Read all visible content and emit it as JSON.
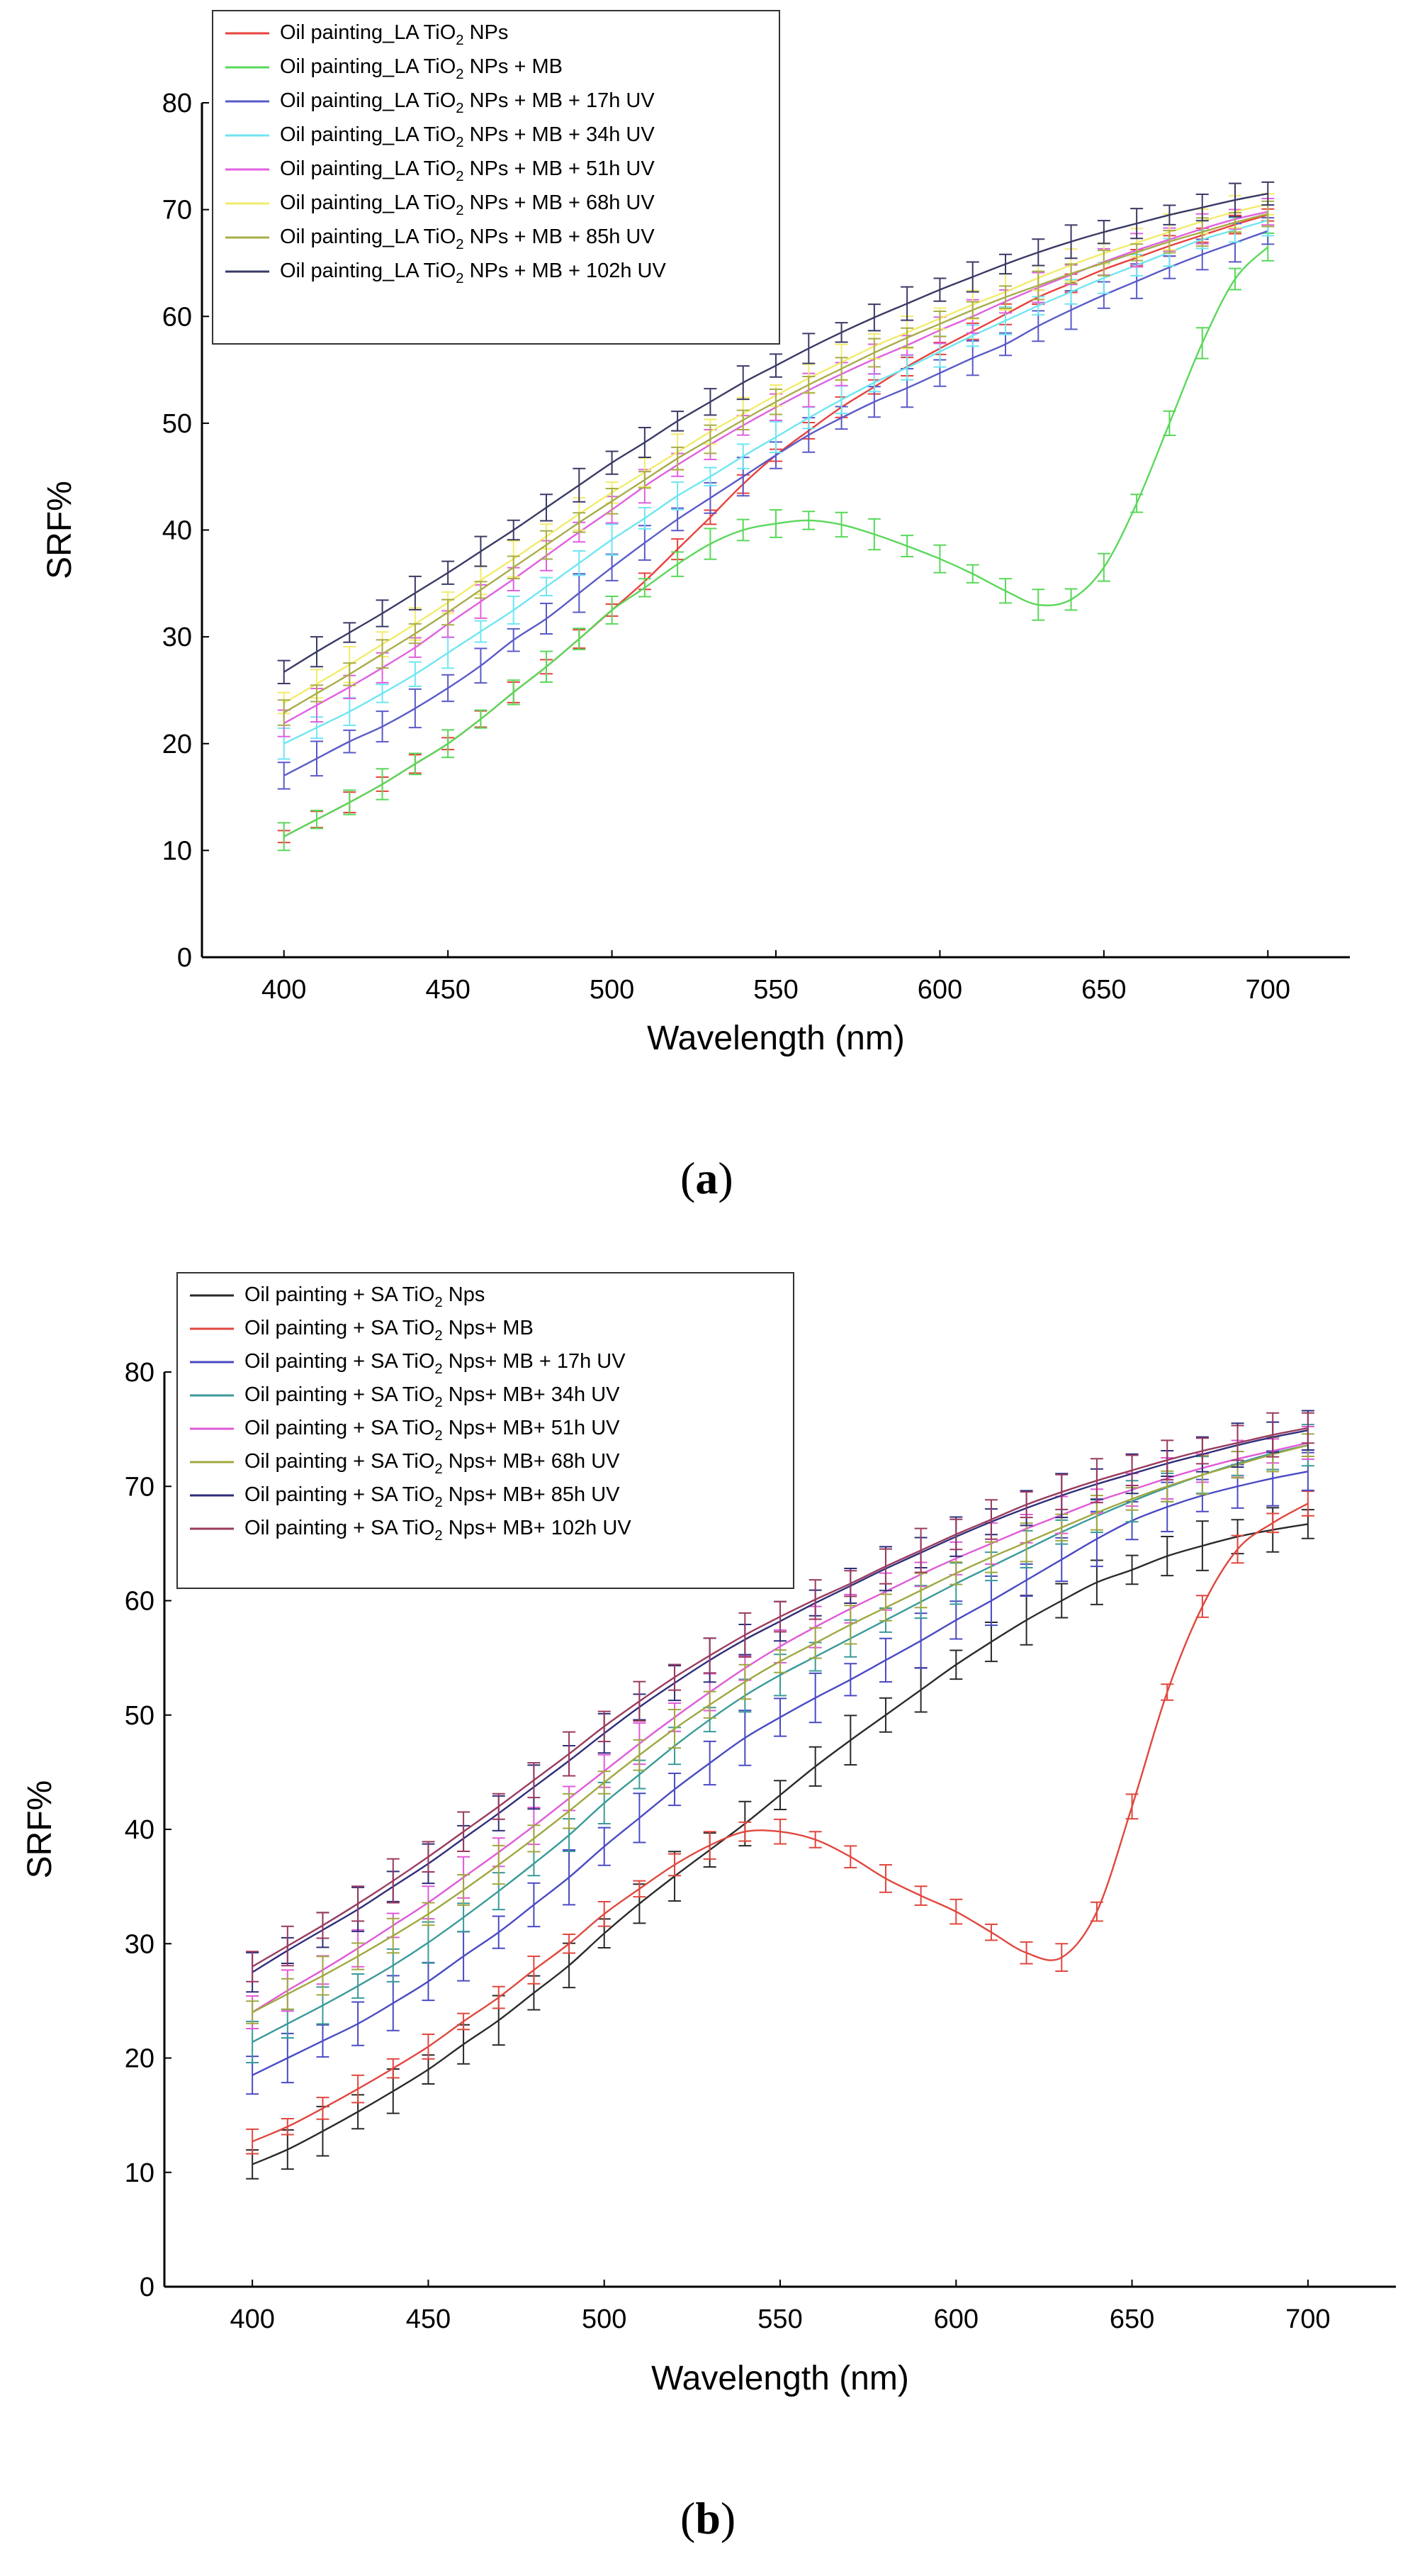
{
  "figure": {
    "panel_a_label": "a",
    "panel_b_label": "b"
  },
  "chart_data": [
    {
      "panel": "a",
      "type": "line",
      "title": "",
      "xlabel": "Wavelength (nm)",
      "ylabel": "SRF%",
      "xlim": [
        375,
        725
      ],
      "ylim": [
        0,
        80
      ],
      "xticks": [
        400,
        450,
        500,
        550,
        600,
        650,
        700
      ],
      "yticks": [
        0,
        10,
        20,
        30,
        40,
        50,
        60,
        70,
        80
      ],
      "grid": false,
      "error_bars": true,
      "legend_position": "top-left",
      "x": [
        400,
        410,
        420,
        430,
        440,
        450,
        460,
        470,
        480,
        490,
        500,
        510,
        520,
        530,
        540,
        550,
        560,
        570,
        580,
        590,
        600,
        610,
        620,
        630,
        640,
        650,
        660,
        670,
        680,
        690,
        700
      ],
      "series": [
        {
          "name": "Oil painting_LA TiO2 NPs",
          "legend_base": "Oil painting_LA TiO",
          "legend_sub": "2",
          "legend_tail": " NPs",
          "color": "#e8413c",
          "error": 0.8,
          "values": [
            11.3,
            12.9,
            14.5,
            16.2,
            18.1,
            20.0,
            22.3,
            24.8,
            27.2,
            29.8,
            32.5,
            35.2,
            38.2,
            41.2,
            44.3,
            47.0,
            49.3,
            51.5,
            53.4,
            55.3,
            57.0,
            58.6,
            60.2,
            61.8,
            63.1,
            64.4,
            65.5,
            66.6,
            67.6,
            68.6,
            69.5
          ]
        },
        {
          "name": "Oil painting_LA TiO2 NPs + MB",
          "legend_base": "Oil painting_LA TiO",
          "legend_sub": "2",
          "legend_tail": " NPs + MB",
          "color": "#5ad85a",
          "error": 1.2,
          "values": [
            11.3,
            12.9,
            14.5,
            16.2,
            18.1,
            20.0,
            22.3,
            24.8,
            27.2,
            29.8,
            32.5,
            34.6,
            36.8,
            38.7,
            40.0,
            40.6,
            40.9,
            40.5,
            39.6,
            38.5,
            37.3,
            35.9,
            34.3,
            33.0,
            33.5,
            36.5,
            42.5,
            50.0,
            57.5,
            63.5,
            66.5
          ]
        },
        {
          "name": "Oil painting_LA TiO2 NPs + MB + 17h UV",
          "legend_base": "Oil painting_LA TiO",
          "legend_sub": "2",
          "legend_tail": " NPs + MB + 17h UV",
          "color": "#5a5ac8",
          "error": 1.5,
          "values": [
            17.0,
            18.6,
            20.2,
            21.6,
            23.3,
            25.2,
            27.3,
            29.7,
            31.7,
            34.1,
            36.5,
            38.8,
            41.0,
            43.0,
            45.0,
            47.0,
            48.9,
            50.5,
            52.0,
            53.3,
            54.7,
            56.1,
            57.4,
            59.1,
            60.6,
            62.0,
            63.3,
            64.6,
            65.8,
            66.9,
            68.0
          ]
        },
        {
          "name": "Oil painting_LA TiO2 NPs + MB + 34h UV",
          "legend_base": "Oil painting_LA TiO",
          "legend_sub": "2",
          "legend_tail": " NPs + MB + 34h UV",
          "color": "#6fe6f2",
          "error": 1.2,
          "values": [
            20.0,
            21.5,
            23.0,
            24.7,
            26.5,
            28.5,
            30.5,
            32.5,
            34.7,
            36.9,
            39.1,
            41.1,
            43.2,
            45.0,
            46.9,
            48.7,
            50.5,
            52.2,
            53.8,
            55.2,
            56.7,
            58.2,
            59.6,
            61.0,
            62.3,
            63.6,
            64.8,
            66.0,
            67.2,
            68.1,
            69.0
          ]
        },
        {
          "name": "Oil painting_LA TiO2 NPs + MB + 51h UV",
          "legend_base": "Oil painting_LA TiO",
          "legend_sub": "2",
          "legend_tail": " NPs + MB + 51h UV",
          "color": "#e060e0",
          "error": 1.3,
          "values": [
            21.9,
            23.6,
            25.3,
            27.1,
            29.0,
            31.2,
            33.3,
            35.4,
            37.6,
            39.8,
            41.9,
            44.1,
            46.1,
            48.0,
            49.8,
            51.5,
            53.1,
            54.6,
            56.0,
            57.3,
            58.7,
            60.0,
            61.4,
            62.7,
            63.9,
            65.1,
            66.2,
            67.2,
            68.2,
            69.1,
            69.8
          ]
        },
        {
          "name": "Oil painting_LA TiO2 NPs + MB + 68h UV",
          "legend_base": "Oil painting_LA TiO",
          "legend_sub": "2",
          "legend_tail": " NPs + MB + 68h UV",
          "color": "#f2ec6a",
          "error": 1.4,
          "values": [
            23.8,
            25.6,
            27.4,
            29.3,
            31.2,
            33.2,
            35.3,
            37.3,
            39.4,
            41.5,
            43.5,
            45.4,
            47.3,
            49.2,
            50.9,
            52.6,
            54.2,
            55.7,
            57.2,
            58.5,
            59.8,
            61.1,
            62.3,
            63.6,
            64.8,
            65.9,
            66.9,
            67.9,
            68.9,
            69.8,
            70.5
          ]
        },
        {
          "name": "Oil painting_LA TiO2 NPs + MB + 85h UV",
          "legend_base": "Oil painting_LA TiO",
          "legend_sub": "2",
          "legend_tail": " NPs + MB + 85h UV",
          "color": "#a8ad48",
          "error": 1.1,
          "values": [
            22.9,
            24.7,
            26.5,
            28.4,
            30.3,
            32.3,
            34.4,
            36.5,
            38.6,
            40.7,
            42.7,
            44.7,
            46.7,
            48.5,
            50.3,
            52.0,
            53.6,
            55.1,
            56.6,
            58.0,
            59.3,
            60.6,
            61.8,
            62.9,
            64.0,
            65.0,
            66.0,
            67.0,
            67.9,
            68.8,
            69.6
          ]
        },
        {
          "name": "Oil painting_LA TiO2 NPs + MB + 102h UV",
          "legend_base": "Oil painting_LA TiO",
          "legend_sub": "2",
          "legend_tail": " NPs + MB + 102h UV",
          "color": "#3a3a66",
          "error": 1.3,
          "values": [
            26.7,
            28.6,
            30.4,
            32.2,
            34.1,
            36.0,
            38.0,
            40.0,
            42.1,
            44.2,
            46.3,
            48.2,
            50.2,
            52.0,
            53.8,
            55.4,
            57.0,
            58.5,
            59.9,
            61.2,
            62.5,
            63.7,
            64.9,
            66.0,
            67.0,
            67.9,
            68.7,
            69.5,
            70.2,
            70.9,
            71.5
          ]
        }
      ]
    },
    {
      "panel": "b",
      "type": "line",
      "title": "",
      "xlabel": "Wavelength (nm)",
      "ylabel": "SRF%",
      "xlim": [
        375,
        725
      ],
      "ylim": [
        0,
        80
      ],
      "xticks": [
        400,
        450,
        500,
        550,
        600,
        650,
        700
      ],
      "yticks": [
        0,
        10,
        20,
        30,
        40,
        50,
        60,
        70,
        80
      ],
      "grid": false,
      "error_bars": true,
      "legend_position": "top-left",
      "x": [
        400,
        410,
        420,
        430,
        440,
        450,
        460,
        470,
        480,
        490,
        500,
        510,
        520,
        530,
        540,
        550,
        560,
        570,
        580,
        590,
        600,
        610,
        620,
        630,
        640,
        650,
        660,
        670,
        680,
        690,
        700
      ],
      "series": [
        {
          "name": "Oil painting + SA TiO2 Nps",
          "legend_base": "Oil painting + SA TiO",
          "legend_sub": "2",
          "legend_tail": " Nps",
          "color": "#2a2a2a",
          "error": 1.8,
          "values": [
            10.7,
            12.0,
            13.6,
            15.3,
            17.1,
            19.0,
            21.2,
            23.3,
            25.7,
            28.1,
            30.9,
            33.5,
            35.9,
            38.2,
            40.5,
            43.0,
            45.5,
            47.8,
            50.0,
            52.2,
            54.4,
            56.4,
            58.3,
            60.0,
            61.6,
            62.7,
            63.9,
            64.8,
            65.6,
            66.2,
            66.7
          ]
        },
        {
          "name": "Oil  painting + SA TiO2 Nps+ MB",
          "legend_base": "Oil  painting + SA TiO",
          "legend_sub": "2",
          "legend_tail": " Nps+ MB",
          "color": "#e0473e",
          "error": 1.0,
          "values": [
            12.7,
            14.0,
            15.6,
            17.3,
            19.1,
            21.0,
            23.2,
            25.3,
            27.7,
            30.0,
            32.6,
            34.8,
            36.9,
            38.6,
            39.8,
            39.8,
            39.1,
            37.6,
            35.7,
            34.2,
            32.8,
            31.0,
            29.2,
            28.8,
            32.8,
            42.0,
            52.0,
            59.5,
            64.5,
            66.8,
            68.5
          ]
        },
        {
          "name": "Oil  painting + SA TiO2 Nps+ MB + 17h UV",
          "legend_base": "Oil  painting + SA TiO",
          "legend_sub": "2",
          "legend_tail": " Nps+ MB + 17h UV",
          "color": "#4a4ac4",
          "error": 2.0,
          "values": [
            18.5,
            20.0,
            21.5,
            23.0,
            24.8,
            26.7,
            28.9,
            31.0,
            33.4,
            35.8,
            38.5,
            41.0,
            43.5,
            45.8,
            48.0,
            49.8,
            51.5,
            53.1,
            54.8,
            56.5,
            58.3,
            60.0,
            61.8,
            63.6,
            65.4,
            67.0,
            68.2,
            69.2,
            70.0,
            70.7,
            71.3
          ]
        },
        {
          "name": "Oil  painting + SA TiO2 Nps+ MB+ 34h UV",
          "legend_base": "Oil  painting + SA TiO",
          "legend_sub": "2",
          "legend_tail": " Nps+ MB+ 34h UV",
          "color": "#3a9a9a",
          "error": 1.5,
          "values": [
            21.4,
            23.0,
            24.6,
            26.3,
            28.1,
            30.1,
            32.3,
            34.6,
            37.0,
            39.5,
            42.3,
            44.8,
            47.3,
            49.6,
            51.7,
            53.5,
            55.1,
            56.7,
            58.3,
            59.9,
            61.5,
            63.0,
            64.5,
            66.0,
            67.4,
            68.7,
            69.9,
            71.0,
            72.0,
            72.9,
            73.6
          ]
        },
        {
          "name": "Oil  painting + SA TiO2 Nps+ MB+ 51h UV",
          "legend_base": "Oil  painting + SA TiO",
          "legend_sub": "2",
          "legend_tail": " Nps+ MB+ 51h UV",
          "color": "#e05ad8",
          "error": 1.5,
          "values": [
            24.0,
            25.9,
            27.7,
            29.6,
            31.6,
            33.6,
            35.8,
            38.0,
            40.3,
            42.7,
            45.1,
            47.5,
            49.8,
            52.0,
            54.1,
            56.0,
            57.7,
            59.3,
            60.8,
            62.3,
            63.7,
            65.0,
            66.3,
            67.5,
            68.7,
            69.7,
            70.7,
            71.6,
            72.4,
            73.1,
            73.8
          ]
        },
        {
          "name": "Oil  painting + SA TiO2 Nps+ MB+ 68h UV",
          "legend_base": "Oil  painting + SA TiO",
          "legend_sub": "2",
          "legend_tail": " Nps+ MB+ 68h UV",
          "color": "#a0a840",
          "error": 1.4,
          "values": [
            24.0,
            25.6,
            27.2,
            28.9,
            30.7,
            32.6,
            34.7,
            36.9,
            39.2,
            41.6,
            44.1,
            46.5,
            48.8,
            50.9,
            52.9,
            54.7,
            56.3,
            57.9,
            59.4,
            60.9,
            62.4,
            63.8,
            65.1,
            66.4,
            67.7,
            68.9,
            70.0,
            71.0,
            71.9,
            72.8,
            73.6
          ]
        },
        {
          "name": "Oil  painting + SA TiO2 Nps+ MB+ 85h UV",
          "legend_base": "Oil  painting + SA TiO",
          "legend_sub": "2",
          "legend_tail": " Nps+ MB+ 85h UV",
          "color": "#2e2e7a",
          "error": 1.6,
          "values": [
            27.5,
            29.4,
            31.2,
            33.0,
            35.0,
            37.0,
            39.2,
            41.4,
            43.7,
            46.0,
            48.4,
            50.7,
            52.8,
            54.8,
            56.6,
            58.2,
            59.8,
            61.3,
            62.8,
            64.2,
            65.6,
            66.9,
            68.1,
            69.2,
            70.2,
            71.1,
            72.0,
            72.8,
            73.6,
            74.3,
            74.9
          ]
        },
        {
          "name": "Oil  painting + SA TiO2 Nps+ MB+ 102h UV",
          "legend_base": "Oil  painting + SA TiO",
          "legend_sub": "2",
          "legend_tail": " Nps+ MB+ 102h UV",
          "color": "#9a3a5e",
          "error": 1.6,
          "values": [
            28.0,
            29.8,
            31.6,
            33.5,
            35.5,
            37.6,
            39.8,
            42.0,
            44.3,
            46.6,
            49.0,
            51.2,
            53.3,
            55.2,
            57.0,
            58.6,
            60.1,
            61.5,
            63.0,
            64.4,
            65.8,
            67.1,
            68.4,
            69.5,
            70.5,
            71.4,
            72.3,
            73.1,
            73.8,
            74.5,
            75.1
          ]
        }
      ]
    }
  ]
}
